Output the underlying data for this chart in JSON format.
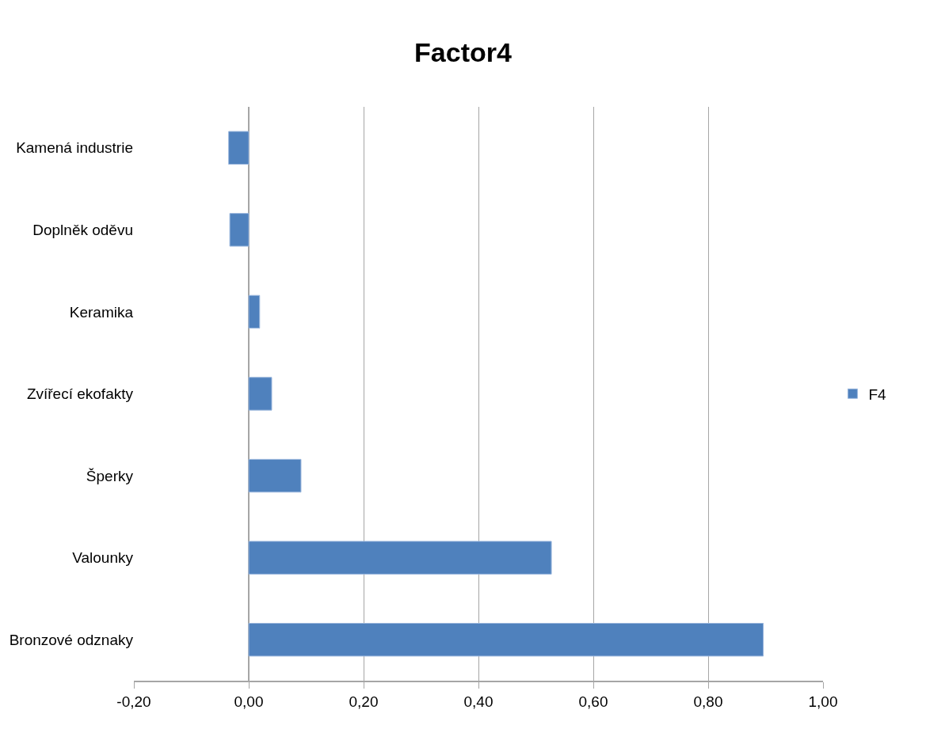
{
  "chart_data": {
    "type": "bar",
    "orientation": "horizontal",
    "title": "Factor4",
    "categories": [
      "Kamená industrie",
      "Doplněk oděvu",
      "Keramika",
      "Zvířecí ekofakty",
      "Šperky",
      "Valounky",
      "Bronzové odznaky"
    ],
    "series": [
      {
        "name": "F4",
        "color": "#4f81bd",
        "values": [
          -0.035,
          -0.033,
          0.019,
          0.04,
          0.091,
          0.527,
          0.896
        ]
      }
    ],
    "xlim": [
      -0.2,
      1.0
    ],
    "xticks": [
      {
        "value": -0.2,
        "label": "-0,20"
      },
      {
        "value": 0,
        "label": "0,00"
      },
      {
        "value": 0.2,
        "label": "0,20"
      },
      {
        "value": 0.4,
        "label": "0,40"
      },
      {
        "value": 0.6,
        "label": "0,60"
      },
      {
        "value": 0.8,
        "label": "0,80"
      },
      {
        "value": 1.0,
        "label": "1,00"
      }
    ],
    "grid": "x",
    "legend": "right"
  }
}
